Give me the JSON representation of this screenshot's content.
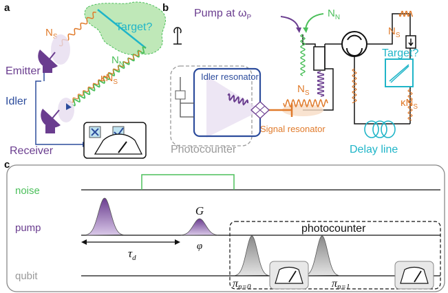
{
  "panel_a": {
    "label": "a",
    "target": "Target?",
    "signal": {
      "text": "N",
      "sub": "S"
    },
    "noise": {
      "text": "N",
      "sub": "N"
    },
    "return": {
      "text": "κN",
      "sub": "S"
    },
    "emitter": "Emitter",
    "idler": "Idler",
    "receiver": "Receiver"
  },
  "panel_b": {
    "label": "b",
    "pump": {
      "text": "Pump at ω",
      "sub": "P"
    },
    "noise": {
      "text": "N",
      "sub": "N"
    },
    "signal_top": {
      "text": "N",
      "sub": "S"
    },
    "signal_mid": {
      "text": "N",
      "sub": "S"
    },
    "target": "Target?",
    "return": {
      "text": "κN",
      "sub": "S"
    },
    "idler_resonator": "Idler resonator",
    "signal_resonator": "Signal resonator",
    "photocounter": "Photocounter",
    "delay_line": "Delay line"
  },
  "panel_c": {
    "label": "c",
    "rows": [
      "noise",
      "pump",
      "qubit"
    ],
    "gain": "G",
    "phase": "φ",
    "delay": {
      "text": "τ",
      "sub": "d"
    },
    "photocounter": "photocounter",
    "pi_0": {
      "text": "π",
      "sub": "n=0"
    },
    "pi_1": {
      "text": "π",
      "sub": "n=1"
    }
  }
}
